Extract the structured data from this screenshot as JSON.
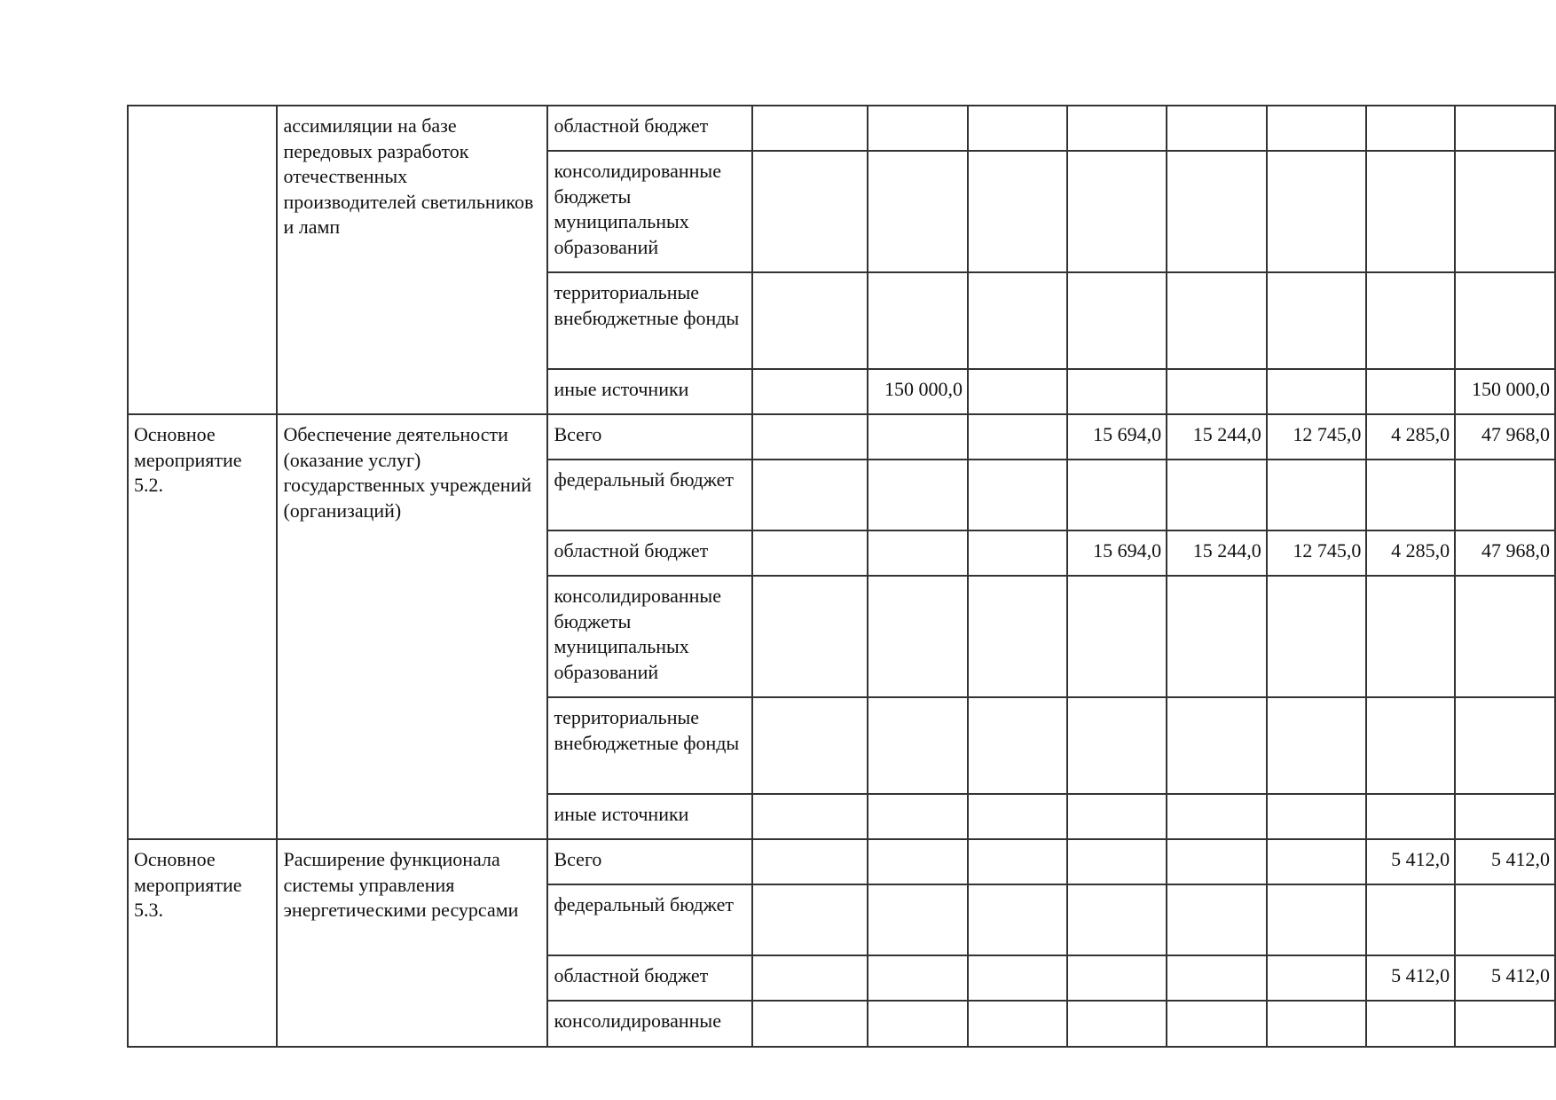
{
  "blocks": [
    {
      "code": "",
      "name": "ассимиляции на базе передовых разработок отечественных производителей светильников и ламп",
      "rows": [
        {
          "source": "областной бюджет",
          "values": [
            "",
            "",
            "",
            "",
            "",
            "",
            "",
            ""
          ]
        },
        {
          "source": "консолидированные бюджеты муниципальных образований",
          "values": [
            "",
            "",
            "",
            "",
            "",
            "",
            "",
            ""
          ]
        },
        {
          "source": "территориальные внебюджетные фонды",
          "values": [
            "",
            "",
            "",
            "",
            "",
            "",
            "",
            ""
          ]
        },
        {
          "source": "иные источники",
          "values": [
            "",
            "150 000,0",
            "",
            "",
            "",
            "",
            "",
            "150 000,0"
          ]
        }
      ]
    },
    {
      "code": "Основное мероприятие 5.2.",
      "name": "Обеспечение деятельности (оказание услуг) государственных учреждений (организаций)",
      "rows": [
        {
          "source": "Всего",
          "values": [
            "",
            "",
            "",
            "15 694,0",
            "15 244,0",
            "12 745,0",
            "4 285,0",
            "47 968,0"
          ]
        },
        {
          "source": "федеральный бюджет",
          "values": [
            "",
            "",
            "",
            "",
            "",
            "",
            "",
            ""
          ]
        },
        {
          "source": "областной бюджет",
          "values": [
            "",
            "",
            "",
            "15 694,0",
            "15 244,0",
            "12 745,0",
            "4 285,0",
            "47 968,0"
          ]
        },
        {
          "source": "консолидированные бюджеты муниципальных образований",
          "values": [
            "",
            "",
            "",
            "",
            "",
            "",
            "",
            ""
          ]
        },
        {
          "source": "территориальные внебюджетные фонды",
          "values": [
            "",
            "",
            "",
            "",
            "",
            "",
            "",
            ""
          ]
        },
        {
          "source": "иные источники",
          "values": [
            "",
            "",
            "",
            "",
            "",
            "",
            "",
            ""
          ]
        }
      ]
    },
    {
      "code": "Основное мероприятие 5.3.",
      "name": "Расширение функционала системы управления энергетическими ресурсами",
      "rows": [
        {
          "source": "Всего",
          "values": [
            "",
            "",
            "",
            "",
            "",
            "",
            "5 412,0",
            "5 412,0"
          ]
        },
        {
          "source": "федеральный бюджет",
          "values": [
            "",
            "",
            "",
            "",
            "",
            "",
            "",
            ""
          ]
        },
        {
          "source": "областной бюджет",
          "values": [
            "",
            "",
            "",
            "",
            "",
            "",
            "5 412,0",
            "5 412,0"
          ]
        },
        {
          "source": "консолидированные",
          "values": [
            "",
            "",
            "",
            "",
            "",
            "",
            "",
            ""
          ]
        }
      ]
    }
  ]
}
